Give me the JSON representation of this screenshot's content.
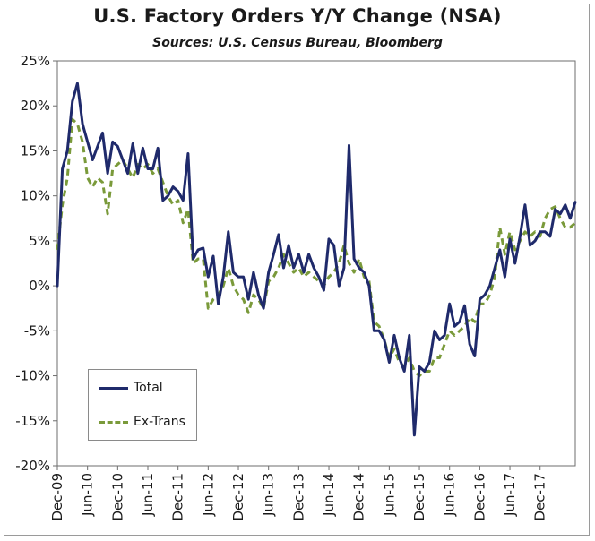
{
  "chart_data": {
    "type": "line",
    "title": "U.S. Factory Orders Y/Y Change (NSA)",
    "subtitle": "Sources: U.S. Census Bureau, Bloomberg",
    "xlabel": "",
    "ylabel": "",
    "ylim": [
      -20,
      25
    ],
    "y_ticks": [
      25,
      20,
      15,
      10,
      5,
      0,
      -5,
      -10,
      -15,
      -20
    ],
    "y_tick_labels": [
      "25%",
      "20%",
      "15%",
      "10%",
      "5%",
      "0%",
      "-5%",
      "-10%",
      "-15%",
      "-20%"
    ],
    "x_tick_labels": [
      "Dec-09",
      "Jun-10",
      "Dec-10",
      "Jun-11",
      "Dec-11",
      "Jun-12",
      "Dec-12",
      "Jun-13",
      "Dec-13",
      "Jun-14",
      "Dec-14",
      "Jun-15",
      "Dec-15",
      "Jun-16",
      "Dec-16",
      "Jun-17",
      "Dec-17"
    ],
    "x_tick_months": [
      0,
      6,
      12,
      18,
      24,
      30,
      36,
      42,
      48,
      54,
      60,
      66,
      72,
      78,
      84,
      90,
      96
    ],
    "months_total": 103,
    "grid": false,
    "legend_position": "lower-left",
    "series": [
      {
        "name": "Total",
        "color": "#1f2a6b",
        "style": "solid",
        "values": [
          0,
          13,
          15,
          20.5,
          22.5,
          18,
          16,
          14,
          15.5,
          17,
          12.5,
          16,
          15.5,
          14,
          12.5,
          15.8,
          12.5,
          15.3,
          13,
          13,
          15.3,
          9.5,
          10,
          11,
          10.5,
          9.5,
          14.7,
          3,
          4,
          4.2,
          1,
          3.3,
          -2,
          1,
          6,
          1.5,
          1,
          1,
          -1.5,
          1.5,
          -1,
          -2.5,
          1.5,
          3.5,
          5.7,
          2,
          4.5,
          2,
          3.5,
          1.5,
          3.5,
          2,
          1,
          -0.5,
          5.2,
          4.5,
          0,
          2,
          15.6,
          3,
          2,
          1.5,
          0,
          -5,
          -5,
          -6,
          -8.5,
          -5.5,
          -8,
          -9.5,
          -5.5,
          -16.6,
          -9,
          -9.5,
          -8.5,
          -5,
          -6,
          -5.5,
          -2,
          -4.5,
          -4,
          -2.2,
          -6.5,
          -7.8,
          -1.5,
          -1,
          0,
          2,
          4,
          1,
          5.2,
          2.5,
          5.5,
          9,
          4.5,
          5,
          6,
          6,
          5.5,
          8.5,
          8,
          9,
          7.5,
          9.3
        ]
      },
      {
        "name": "Ex-Trans",
        "color": "#7a9a3a",
        "style": "dashed",
        "values": [
          4,
          9,
          12,
          18.5,
          18,
          16,
          12,
          11,
          12,
          11.5,
          8,
          13,
          13.5,
          14,
          13,
          12,
          13.5,
          13,
          13.5,
          12.5,
          13,
          11.5,
          10,
          9,
          9.5,
          7,
          8.5,
          2.5,
          3,
          3,
          -2.5,
          -1.5,
          -1,
          0,
          2,
          0,
          -1,
          -1.5,
          -3,
          -1,
          -1.5,
          -2.5,
          0.5,
          1,
          2,
          3.5,
          2.5,
          1.5,
          2,
          1,
          1.5,
          1,
          0.5,
          0,
          1,
          1.5,
          2.5,
          4.5,
          2.5,
          1.5,
          3,
          1,
          0.5,
          -4,
          -4.5,
          -6,
          -8,
          -7,
          -8.5,
          -9,
          -8,
          -9.5,
          -10,
          -9.5,
          -9.5,
          -8,
          -8,
          -6.5,
          -5,
          -5.5,
          -5,
          -4.5,
          -3.5,
          -4,
          -2,
          -2,
          -1,
          1,
          6.5,
          3.5,
          6,
          4,
          5,
          6,
          5.5,
          6,
          5.5,
          7.5,
          8.5,
          8.8,
          7.5,
          6.5,
          6.5,
          7
        ]
      }
    ]
  }
}
